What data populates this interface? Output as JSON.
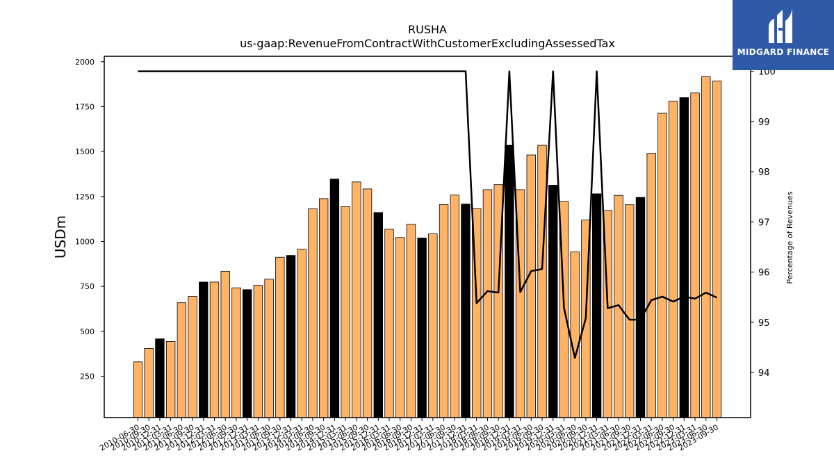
{
  "header": {
    "title_line1": "RUSHA",
    "title_line2": "us-gaap:RevenueFromContractWithCustomerExcludingAssessedTax"
  },
  "logo": {
    "text": "MIDGARD FINANCE",
    "bg_color": "#2f5aa8"
  },
  "chart_data": {
    "type": "bar",
    "title": "RUSHA",
    "subtitle": "us-gaap:RevenueFromContractWithCustomerExcludingAssessedTax",
    "ylabel": "USDm",
    "ylabel_right": "Percentage of Revenues",
    "ylim": [
      20,
      2030
    ],
    "ylim_right": [
      93.1,
      100.3
    ],
    "yticks": [
      250,
      500,
      750,
      1000,
      1250,
      1500,
      1750,
      2000
    ],
    "yticks_right": [
      94,
      95,
      96,
      97,
      98,
      99,
      100
    ],
    "grid": false,
    "legend": "none",
    "colors": {
      "bar_quarter": "#ffb366",
      "bar_annual": "#000000",
      "line": "#000000"
    },
    "categories": [
      "2010-06-30",
      "2010-09-30",
      "2010-12-31",
      "2011-03-31",
      "2011-06-30",
      "2011-09-30",
      "2011-12-31",
      "2012-03-31",
      "2012-06-30",
      "2012-09-30",
      "2012-12-31",
      "2013-03-31",
      "2013-06-30",
      "2013-09-30",
      "2013-12-31",
      "2014-03-31",
      "2014-06-30",
      "2014-09-30",
      "2014-12-31",
      "2015-03-31",
      "2015-06-30",
      "2015-09-30",
      "2015-12-31",
      "2016-03-31",
      "2016-06-30",
      "2016-09-30",
      "2016-12-31",
      "2017-03-31",
      "2017-06-30",
      "2017-09-30",
      "2017-12-31",
      "2018-03-31",
      "2018-06-30",
      "2018-09-30",
      "2018-12-31",
      "2019-03-31",
      "2019-06-30",
      "2019-09-30",
      "2019-12-31",
      "2020-03-31",
      "2020-06-30",
      "2020-09-30",
      "2020-12-31",
      "2021-03-31",
      "2021-06-30",
      "2021-09-30",
      "2021-12-31",
      "2022-03-31",
      "2022-06-30",
      "2022-09-30",
      "2022-12-31",
      "2023-03-31",
      "2023-06-30",
      "2023-09-30"
    ],
    "series": [
      {
        "values": [
          330,
          405,
          458,
          443,
          659,
          695,
          774,
          774,
          834,
          742,
          732,
          756,
          790,
          912,
          922,
          957,
          1181,
          1238,
          1347,
          1193,
          1331,
          1292,
          1161,
          1068,
          1022,
          1095,
          1019,
          1042,
          1205,
          1258,
          1208,
          1182,
          1288,
          1316,
          1535,
          1288,
          1481,
          1535,
          1313,
          1223,
          942,
          1119,
          1265,
          1172,
          1256,
          1204,
          1245,
          1490,
          1713,
          1781,
          1800,
          1826,
          1916,
          1892
        ],
        "annual_flags": [
          0,
          0,
          1,
          0,
          0,
          0,
          1,
          0,
          0,
          0,
          1,
          0,
          0,
          0,
          1,
          0,
          0,
          0,
          1,
          0,
          0,
          0,
          1,
          0,
          0,
          0,
          1,
          0,
          0,
          0,
          1,
          0,
          0,
          0,
          1,
          0,
          0,
          0,
          1,
          0,
          0,
          0,
          1,
          0,
          0,
          0,
          1,
          0,
          0,
          0,
          1,
          0,
          0,
          0
        ]
      },
      {
        "axis": "right",
        "values": [
          100,
          100,
          100,
          100,
          100,
          100,
          100,
          100,
          100,
          100,
          100,
          100,
          100,
          100,
          100,
          100,
          100,
          100,
          100,
          100,
          100,
          100,
          100,
          100,
          100,
          100,
          100,
          100,
          100,
          100,
          100,
          95.38,
          95.62,
          95.59,
          100,
          95.6,
          96.02,
          96.06,
          100,
          95.29,
          94.29,
          95.08,
          100,
          95.28,
          95.34,
          95.05,
          95.05,
          95.44,
          95.51,
          95.41,
          95.51,
          95.47,
          95.59,
          95.49
        ]
      }
    ]
  }
}
